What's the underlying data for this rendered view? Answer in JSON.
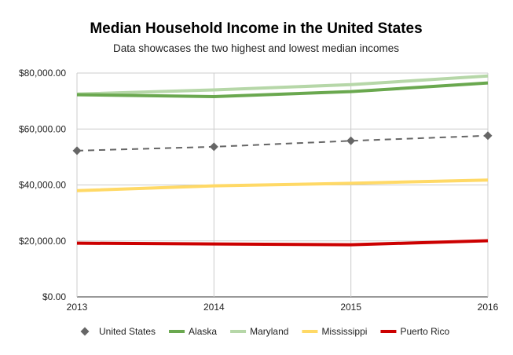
{
  "chart_data": {
    "type": "line",
    "title": "Median Household Income in the United States",
    "subtitle": "Data showcases the two highest and lowest median incomes",
    "xlabel": "",
    "ylabel": "",
    "x": [
      2013,
      2014,
      2015,
      2016
    ],
    "x_tick_labels": [
      "2013",
      "2014",
      "2015",
      "2016"
    ],
    "ylim": [
      0,
      80000
    ],
    "y_ticks": [
      0,
      20000,
      40000,
      60000,
      80000
    ],
    "y_tick_labels": [
      "$0.00",
      "$20,000.00",
      "$40,000.00",
      "$60,000.00",
      "$80,000.00"
    ],
    "grid": true,
    "legend_position": "bottom",
    "series": [
      {
        "name": "United States",
        "color": "#666666",
        "style": "dashed",
        "marker": "diamond",
        "values": [
          52250,
          53650,
          55775,
          57617
        ]
      },
      {
        "name": "Alaska",
        "color": "#6aa84f",
        "style": "solid",
        "marker": "none",
        "values": [
          72237,
          71583,
          73355,
          76440
        ]
      },
      {
        "name": "Maryland",
        "color": "#b6d7a8",
        "style": "solid",
        "marker": "none",
        "values": [
          72483,
          73971,
          75847,
          78945
        ]
      },
      {
        "name": "Mississippi",
        "color": "#ffd966",
        "style": "solid",
        "marker": "none",
        "values": [
          37963,
          39680,
          40593,
          41754
        ]
      },
      {
        "name": "Puerto Rico",
        "color": "#cc0000",
        "style": "solid",
        "marker": "none",
        "values": [
          19183,
          18928,
          18626,
          20078
        ]
      }
    ]
  }
}
